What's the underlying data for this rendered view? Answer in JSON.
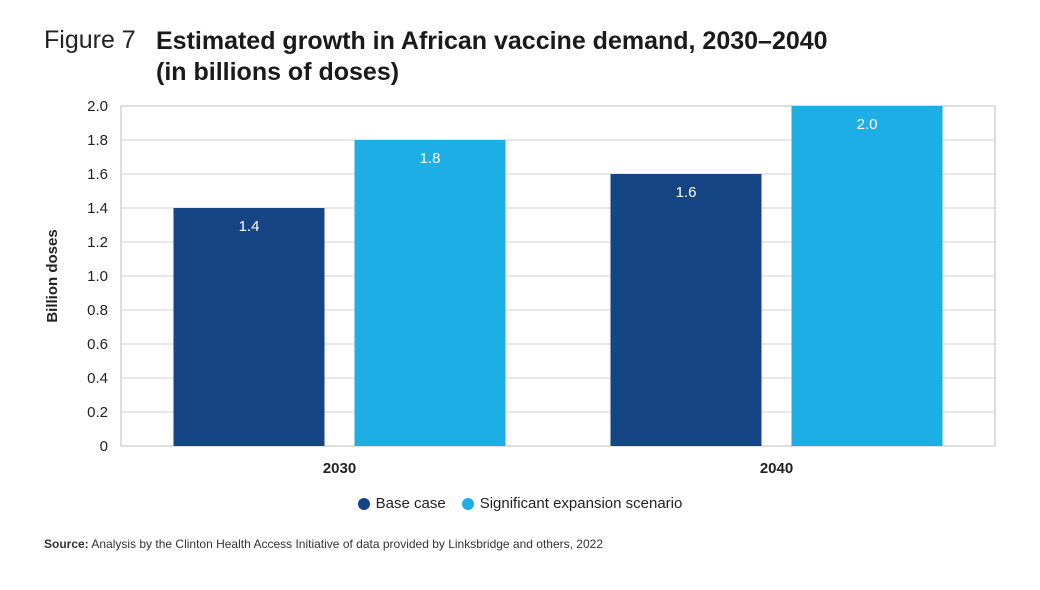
{
  "figure_label": "Figure 7",
  "title_line1": "Estimated growth in African vaccine demand, 2030–2040",
  "title_line2": "(in billions of doses)",
  "source_label": "Source:",
  "source_text": "Analysis by the Clinton Health Access Initiative of data provided by Linksbridge and others, 2022",
  "colors": {
    "base": "#154584",
    "expansion": "#1EAEE6",
    "grid": "#d0d0d0"
  },
  "chart_data": {
    "type": "bar",
    "title": "Estimated growth in African vaccine demand, 2030–2040 (in billions of doses)",
    "xlabel": "",
    "ylabel": "Billion doses",
    "categories": [
      "2030",
      "2040"
    ],
    "series": [
      {
        "name": "Base case",
        "values": [
          1.4,
          1.6
        ],
        "labels": [
          "1.4",
          "1.6"
        ]
      },
      {
        "name": "Significant expansion scenario",
        "values": [
          1.8,
          2.0
        ],
        "labels": [
          "1.8",
          "2.0"
        ]
      }
    ],
    "ylim": [
      0,
      2.0
    ],
    "yticks": [
      "0",
      "0.2",
      "0.4",
      "0.6",
      "0.8",
      "1.0",
      "1.2",
      "1.4",
      "1.6",
      "1.8",
      "2.0"
    ],
    "grid": true,
    "legend_position": "bottom"
  }
}
